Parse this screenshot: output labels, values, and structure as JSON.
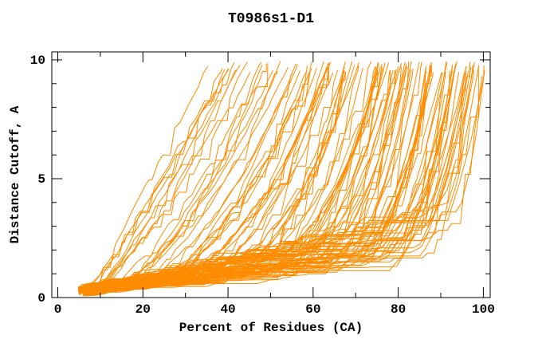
{
  "chart_data": {
    "type": "line",
    "title": "T0986s1-D1",
    "xlabel": "Percent of Residues (CA)",
    "ylabel": "Distance Cutoff, A",
    "xlim": [
      0,
      100
    ],
    "ylim": [
      0,
      10
    ],
    "x_major_ticks": [
      0,
      20,
      40,
      60,
      80,
      100
    ],
    "x_minor_ticks": [
      10,
      30,
      50,
      70,
      90
    ],
    "y_major_ticks": [
      0,
      5,
      10
    ],
    "y_minor_ticks": [
      1,
      2,
      3,
      4,
      6,
      7,
      8,
      9
    ],
    "grid": false,
    "legend": "none",
    "frame": "full-box-mirrored-inward-ticks",
    "line_color": "#FF8C00",
    "frame_color": "#000000",
    "background_color": "#FFFFFF",
    "n_curves": 118,
    "curve_family": {
      "description": "Spaghetti plot of per-model cumulative accuracy curves: each monotone curve gives the distance cutoff (A) under which a given percent of CA residues is superimposable. Curves start near 5-8% at cutoff ~0.2A and rise monotonically to ~9.5-9.95A, finishing between ~33% and 100% of residues; a dense bundle stays below ~4A until high percentages then sweeps up near the right edge.",
      "seed": 11,
      "x_start_range": [
        4.8,
        8.2
      ],
      "x_finish_range": [
        33,
        100.4
      ],
      "y_start_range": [
        0.1,
        0.4
      ],
      "y_top_range": [
        9.45,
        9.95
      ]
    }
  }
}
